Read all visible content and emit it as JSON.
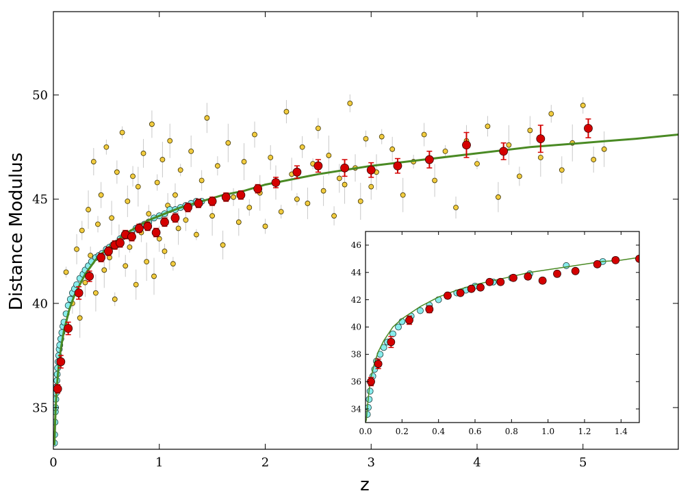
{
  "chart_data": [
    {
      "type": "scatter",
      "title": "",
      "xlabel": "z",
      "ylabel": "Distance Modulus",
      "xlim": [
        0,
        5.9
      ],
      "ylim": [
        33,
        54
      ],
      "xticks": [
        0,
        1,
        2,
        3,
        4,
        5
      ],
      "yticks": [
        35,
        40,
        45,
        50
      ],
      "grid": false,
      "legend": "none",
      "colors": {
        "yellow_points": "#f2cc3f",
        "cyan_points": "#88ecec",
        "red_points": "#d40000",
        "fit_line": "#4a8a24",
        "error_bars": "#c8c8c8"
      },
      "series": [
        {
          "type": "line",
          "x": [
            0.01,
            0.02,
            0.03,
            0.05,
            0.07,
            0.1,
            0.15,
            0.2,
            0.3,
            0.4,
            0.5,
            0.6,
            0.7,
            0.8,
            0.9,
            1.0,
            1.2,
            1.4,
            1.6,
            1.8,
            2.0,
            2.5,
            3.0,
            3.5,
            4.0,
            4.5,
            5.0,
            5.5,
            5.9
          ],
          "y": [
            33.2,
            34.8,
            35.8,
            37.0,
            37.8,
            38.7,
            39.7,
            40.4,
            41.4,
            42.1,
            42.6,
            43.0,
            43.4,
            43.7,
            44.0,
            44.2,
            44.6,
            44.9,
            45.2,
            45.4,
            45.7,
            46.2,
            46.6,
            46.9,
            47.2,
            47.5,
            47.7,
            47.9,
            48.1
          ]
        },
        {
          "type": "errorbar",
          "x": [
            0.04,
            0.07,
            0.14,
            0.24,
            0.34,
            0.45,
            0.52,
            0.58,
            0.63,
            0.68,
            0.74,
            0.81,
            0.89,
            0.97,
            1.05,
            1.15,
            1.27,
            1.37,
            1.5,
            1.63,
            1.77,
            1.93,
            2.1,
            2.3,
            2.5,
            2.75,
            3.0,
            3.25,
            3.55,
            3.9,
            4.25,
            4.6,
            5.05
          ],
          "y": [
            35.9,
            37.2,
            38.8,
            40.5,
            41.3,
            42.2,
            42.5,
            42.8,
            42.9,
            43.3,
            43.2,
            43.6,
            43.7,
            43.4,
            43.9,
            44.1,
            44.6,
            44.8,
            44.9,
            45.1,
            45.2,
            45.5,
            45.8,
            46.3,
            46.6,
            46.5,
            46.4,
            46.6,
            46.9,
            47.6,
            47.3,
            47.9,
            48.4
          ],
          "yerr": [
            0.2,
            0.3,
            0.3,
            0.3,
            0.25,
            0.2,
            0.2,
            0.2,
            0.2,
            0.2,
            0.2,
            0.2,
            0.2,
            0.2,
            0.2,
            0.2,
            0.2,
            0.2,
            0.2,
            0.2,
            0.2,
            0.2,
            0.25,
            0.3,
            0.3,
            0.4,
            0.35,
            0.35,
            0.4,
            0.6,
            0.4,
            0.65,
            0.45
          ]
        },
        {
          "type": "scatter",
          "x": [
            0.01,
            0.012,
            0.015,
            0.018,
            0.02,
            0.023,
            0.026,
            0.03,
            0.033,
            0.036,
            0.04,
            0.045,
            0.05,
            0.055,
            0.06,
            0.07,
            0.08,
            0.09,
            0.1,
            0.12,
            0.14,
            0.16,
            0.18,
            0.2,
            0.22,
            0.25,
            0.28,
            0.3,
            0.33,
            0.36,
            0.4,
            0.43,
            0.46,
            0.5,
            0.53,
            0.56,
            0.6,
            0.63,
            0.66,
            0.7,
            0.74,
            0.78,
            0.82,
            0.86,
            0.9,
            0.95,
            1.0,
            1.05,
            1.1,
            1.15,
            1.2,
            1.25,
            1.3,
            1.35,
            1.4
          ],
          "y": [
            33.3,
            33.7,
            34.3,
            34.8,
            35.0,
            35.4,
            35.7,
            36.0,
            36.3,
            36.6,
            36.9,
            37.2,
            37.5,
            37.8,
            38.0,
            38.3,
            38.6,
            38.9,
            39.1,
            39.5,
            39.9,
            40.2,
            40.5,
            40.7,
            40.9,
            41.2,
            41.4,
            41.6,
            41.8,
            42.0,
            42.2,
            42.3,
            42.4,
            42.6,
            42.7,
            42.8,
            42.9,
            43.1,
            43.2,
            43.3,
            43.4,
            43.6,
            43.7,
            43.8,
            43.9,
            44.1,
            44.2,
            44.3,
            44.5,
            44.5,
            44.6,
            44.7,
            44.8,
            44.9,
            44.9
          ]
        },
        {
          "type": "scatter",
          "x": [
            0.12,
            0.18,
            0.22,
            0.25,
            0.27,
            0.3,
            0.33,
            0.35,
            0.38,
            0.4,
            0.42,
            0.45,
            0.48,
            0.5,
            0.53,
            0.55,
            0.58,
            0.6,
            0.62,
            0.65,
            0.68,
            0.7,
            0.72,
            0.75,
            0.78,
            0.8,
            0.83,
            0.85,
            0.88,
            0.9,
            0.93,
            0.95,
            0.98,
            1.0,
            1.03,
            1.05,
            1.08,
            1.1,
            1.13,
            1.15,
            1.18,
            1.2,
            1.25,
            1.3,
            1.35,
            1.4,
            1.45,
            1.5,
            1.55,
            1.6,
            1.65,
            1.7,
            1.75,
            1.8,
            1.85,
            1.9,
            1.95,
            2.0,
            2.05,
            2.1,
            2.15,
            2.2,
            2.25,
            2.3,
            2.35,
            2.4,
            2.45,
            2.5,
            2.55,
            2.6,
            2.65,
            2.7,
            2.75,
            2.8,
            2.85,
            2.9,
            2.95,
            3.0,
            3.05,
            3.1,
            3.2,
            3.3,
            3.4,
            3.5,
            3.6,
            3.7,
            3.8,
            3.9,
            4.0,
            4.1,
            4.2,
            4.3,
            4.4,
            4.5,
            4.6,
            4.7,
            4.8,
            4.9,
            5.0,
            5.1,
            5.2
          ],
          "y": [
            41.5,
            40.0,
            42.6,
            39.3,
            43.5,
            41.0,
            44.5,
            42.3,
            46.8,
            40.5,
            43.8,
            45.2,
            41.6,
            47.5,
            42.2,
            44.1,
            40.2,
            46.3,
            43.0,
            48.2,
            41.8,
            44.9,
            42.7,
            46.1,
            40.9,
            45.6,
            43.4,
            47.2,
            42.0,
            44.3,
            48.6,
            41.3,
            45.8,
            43.1,
            46.9,
            42.5,
            44.7,
            47.8,
            41.9,
            45.2,
            43.6,
            46.4,
            44.0,
            47.3,
            43.3,
            45.9,
            48.9,
            44.2,
            46.6,
            42.8,
            47.7,
            45.1,
            43.9,
            46.8,
            44.6,
            48.1,
            45.3,
            43.7,
            47.0,
            45.8,
            44.4,
            49.2,
            46.2,
            45.0,
            47.5,
            44.8,
            46.7,
            48.4,
            45.4,
            47.1,
            44.2,
            46.0,
            45.7,
            49.6,
            46.5,
            44.9,
            47.9,
            45.6,
            46.3,
            48.0,
            47.4,
            45.2,
            46.8,
            48.1,
            45.9,
            47.3,
            44.6,
            47.8,
            46.7,
            48.5,
            45.1,
            47.6,
            46.1,
            48.3,
            47.0,
            49.1,
            46.4,
            47.7,
            49.5,
            46.9,
            47.4
          ]
        }
      ]
    },
    {
      "type": "scatter",
      "title": "",
      "xlabel": "",
      "ylabel": "",
      "xlim": [
        0,
        1.5
      ],
      "ylim": [
        33,
        47
      ],
      "xticks": [
        0.0,
        0.2,
        0.4,
        0.6,
        0.8,
        1.0,
        1.2,
        1.4
      ],
      "xtick_labels": [
        "0.0",
        "0.2",
        "0.4",
        "0.6",
        "0.8",
        "1.0",
        "1.2",
        "1.4"
      ],
      "yticks": [
        34,
        36,
        38,
        40,
        42,
        44,
        46
      ],
      "grid": false,
      "legend": "none",
      "series": [
        {
          "type": "line",
          "x": [
            0.0,
            0.005,
            0.01,
            0.02,
            0.03,
            0.05,
            0.07,
            0.1,
            0.15,
            0.2,
            0.3,
            0.4,
            0.5,
            0.6,
            0.7,
            0.8,
            0.9,
            1.0,
            1.1,
            1.2,
            1.3,
            1.4,
            1.5
          ],
          "y": [
            33.0,
            33.2,
            34.1,
            35.4,
            36.3,
            37.4,
            38.2,
            39.0,
            40.0,
            40.6,
            41.5,
            42.2,
            42.7,
            43.1,
            43.4,
            43.7,
            44.0,
            44.2,
            44.4,
            44.6,
            44.8,
            44.9,
            45.1
          ]
        },
        {
          "type": "errorbar",
          "x": [
            0.03,
            0.07,
            0.14,
            0.24,
            0.35,
            0.45,
            0.52,
            0.58,
            0.63,
            0.68,
            0.74,
            0.81,
            0.89,
            0.97,
            1.05,
            1.15,
            1.27,
            1.37,
            1.5
          ],
          "y": [
            36.0,
            37.3,
            38.9,
            40.5,
            41.3,
            42.3,
            42.5,
            42.8,
            42.9,
            43.3,
            43.3,
            43.6,
            43.7,
            43.4,
            43.9,
            44.1,
            44.6,
            44.9,
            45.0
          ],
          "yerr": [
            0.3,
            0.35,
            0.4,
            0.3,
            0.25,
            0.2,
            0.2,
            0.2,
            0.2,
            0.2,
            0.2,
            0.2,
            0.2,
            0.2,
            0.2,
            0.2,
            0.2,
            0.2,
            0.2
          ]
        },
        {
          "type": "scatter",
          "x": [
            0.01,
            0.015,
            0.02,
            0.025,
            0.03,
            0.04,
            0.05,
            0.06,
            0.08,
            0.1,
            0.12,
            0.15,
            0.18,
            0.2,
            0.25,
            0.3,
            0.35,
            0.4,
            0.5,
            0.55,
            0.6,
            0.7,
            0.8,
            0.9,
            1.1,
            1.3
          ],
          "y": [
            33.6,
            34.1,
            34.7,
            35.3,
            35.9,
            36.4,
            36.9,
            37.5,
            38.0,
            38.5,
            38.9,
            39.5,
            40.0,
            40.4,
            40.8,
            41.2,
            41.6,
            42.0,
            42.5,
            42.7,
            43.0,
            43.3,
            43.6,
            43.9,
            44.5,
            44.8
          ]
        }
      ]
    }
  ]
}
